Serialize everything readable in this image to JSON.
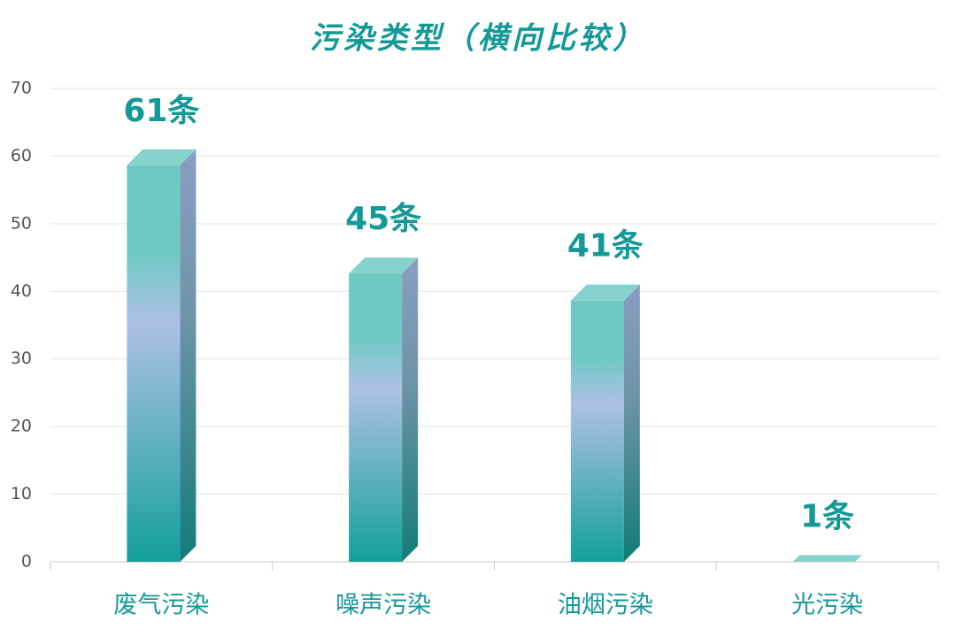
{
  "chart_data": {
    "type": "bar",
    "title": "污染类型（横向比较）",
    "categories": [
      "废气污染",
      "噪声污染",
      "油烟污染",
      "光污染"
    ],
    "values": [
      61,
      45,
      41,
      1
    ],
    "value_labels": [
      "61条",
      "45条",
      "41条",
      "1条"
    ],
    "color": "#13a09b",
    "ylim": [
      0,
      70
    ],
    "yticks": [
      0,
      10,
      20,
      30,
      40,
      50,
      60,
      70
    ],
    "grid": true
  }
}
